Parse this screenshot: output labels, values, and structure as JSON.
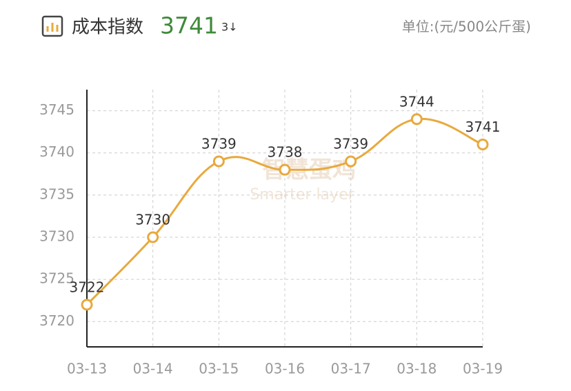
{
  "header": {
    "title": "成本指数",
    "value": "3741",
    "change": "3↓",
    "unit": "单位:(元/500公斤蛋)"
  },
  "watermark": {
    "name": "智慧蛋鸡",
    "subtitle": "Smarter layer"
  },
  "chart_data": {
    "type": "line",
    "categories": [
      "03-13",
      "03-14",
      "03-15",
      "03-16",
      "03-17",
      "03-18",
      "03-19"
    ],
    "series": [
      {
        "color": "#e8a93c",
        "values": [
          3722,
          3730,
          3739,
          3738,
          3739,
          3744,
          3741
        ]
      }
    ],
    "ylim": [
      3717,
      3747.5
    ],
    "yticks": [
      3720,
      3725,
      3730,
      3735,
      3740,
      3745
    ],
    "grid": true,
    "smooth": true
  }
}
